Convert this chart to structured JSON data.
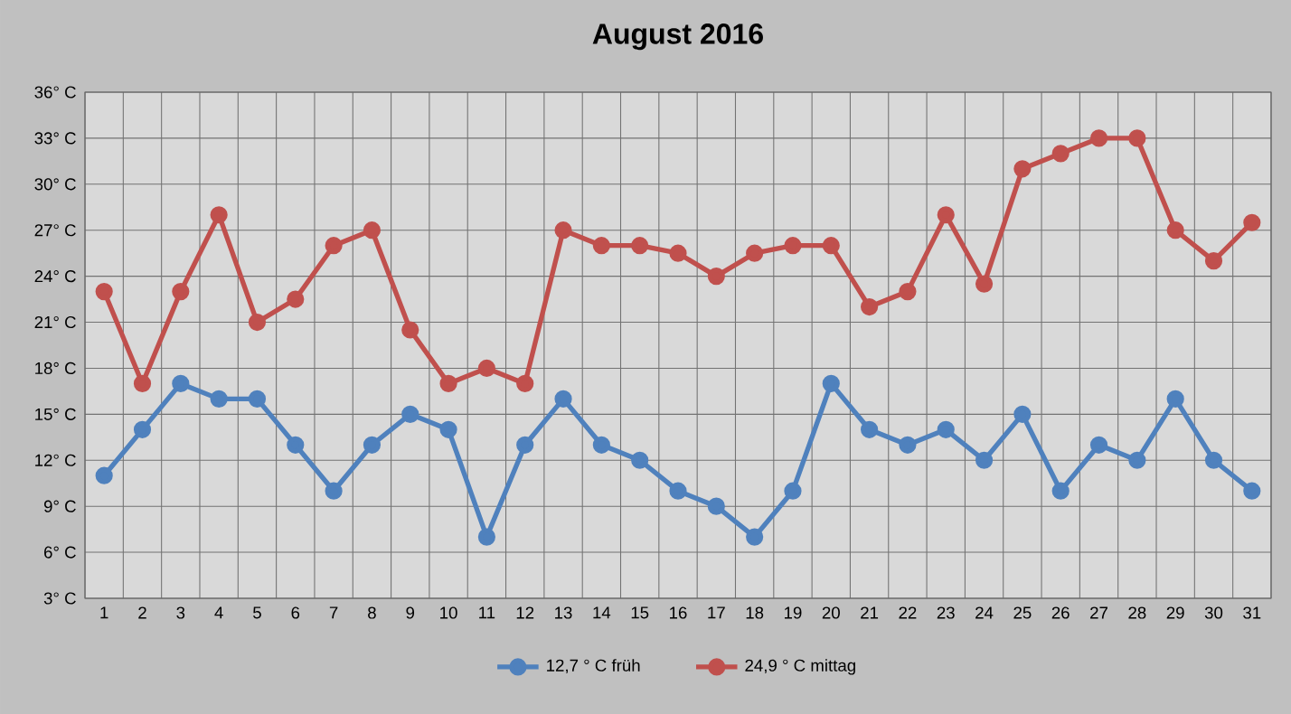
{
  "chart_data": {
    "type": "line",
    "title": "August 2016",
    "categories": [
      "1",
      "2",
      "3",
      "4",
      "5",
      "6",
      "7",
      "8",
      "9",
      "10",
      "11",
      "12",
      "13",
      "14",
      "15",
      "16",
      "17",
      "18",
      "19",
      "20",
      "21",
      "22",
      "23",
      "24",
      "25",
      "26",
      "27",
      "28",
      "29",
      "30",
      "31"
    ],
    "series": [
      {
        "name": "12,7 ° C früh",
        "color": "#4f81bd",
        "values": [
          11,
          14,
          17,
          16,
          16,
          13,
          10,
          13,
          15,
          14,
          7,
          13,
          16,
          13,
          12,
          10,
          9,
          7,
          10,
          17,
          14,
          13,
          14,
          12,
          15,
          10,
          13,
          12,
          16,
          12,
          10
        ]
      },
      {
        "name": "24,9 ° C mittag",
        "color": "#c0504d",
        "values": [
          23,
          17,
          23,
          28,
          21,
          22.5,
          26,
          27,
          20.5,
          17,
          18,
          17,
          27,
          26,
          26,
          25.5,
          24,
          25.5,
          26,
          26,
          22,
          23,
          28,
          23.5,
          31,
          32,
          33,
          33,
          27,
          25,
          27.5
        ]
      }
    ],
    "ylim": [
      3,
      36
    ],
    "yticks": [
      {
        "value": 3,
        "label": "3° C"
      },
      {
        "value": 6,
        "label": "6° C"
      },
      {
        "value": 9,
        "label": "9° C"
      },
      {
        "value": 12,
        "label": "12° C"
      },
      {
        "value": 15,
        "label": "15° C"
      },
      {
        "value": 18,
        "label": "18° C"
      },
      {
        "value": 21,
        "label": "21° C"
      },
      {
        "value": 24,
        "label": "24° C"
      },
      {
        "value": 27,
        "label": "27° C"
      },
      {
        "value": 30,
        "label": "30° C"
      },
      {
        "value": 33,
        "label": "33° C"
      },
      {
        "value": 36,
        "label": "36° C"
      }
    ],
    "grid": true,
    "legend": "bottom",
    "marker": "circle",
    "line_style": "solid"
  }
}
